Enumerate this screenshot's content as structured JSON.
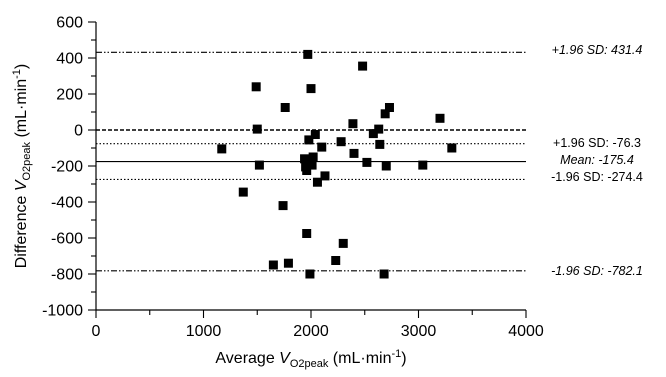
{
  "chart_data": {
    "type": "scatter",
    "title": "",
    "xlabel": {
      "prefix": "Average ",
      "var": "V",
      "sub": "O2peak",
      "unit_open": " (mL·min",
      "sup": "-1",
      "unit_close": ")"
    },
    "ylabel": {
      "prefix": "Difference ",
      "var": "V",
      "sub": "O2peak",
      "unit_open": " (mL·min",
      "sup": "-1",
      "unit_close": ")"
    },
    "xlim": [
      0,
      4000
    ],
    "ylim": [
      -1000,
      600
    ],
    "x_ticks": [
      0,
      1000,
      2000,
      3000,
      4000
    ],
    "y_ticks": [
      -1000,
      -800,
      -600,
      -400,
      -200,
      0,
      200,
      400,
      600
    ],
    "x_minor_step": 500,
    "y_minor_step": 100,
    "grid": false,
    "legend": "none",
    "marker_color": "#000000",
    "points": [
      {
        "x": 1170,
        "y": -105
      },
      {
        "x": 1370,
        "y": -345
      },
      {
        "x": 1490,
        "y": 240
      },
      {
        "x": 1500,
        "y": 5
      },
      {
        "x": 1520,
        "y": -195
      },
      {
        "x": 1650,
        "y": -750
      },
      {
        "x": 1740,
        "y": -420
      },
      {
        "x": 1760,
        "y": 125
      },
      {
        "x": 1790,
        "y": -740
      },
      {
        "x": 1940,
        "y": -160
      },
      {
        "x": 1950,
        "y": -205
      },
      {
        "x": 1960,
        "y": -225
      },
      {
        "x": 1960,
        "y": -575
      },
      {
        "x": 1970,
        "y": 420
      },
      {
        "x": 1980,
        "y": -55
      },
      {
        "x": 1990,
        "y": -800
      },
      {
        "x": 2000,
        "y": 230
      },
      {
        "x": 2010,
        "y": -195
      },
      {
        "x": 2020,
        "y": -150
      },
      {
        "x": 2040,
        "y": -25
      },
      {
        "x": 2060,
        "y": -290
      },
      {
        "x": 2100,
        "y": -95
      },
      {
        "x": 2130,
        "y": -255
      },
      {
        "x": 2230,
        "y": -725
      },
      {
        "x": 2280,
        "y": -65
      },
      {
        "x": 2300,
        "y": -630
      },
      {
        "x": 2390,
        "y": 35
      },
      {
        "x": 2400,
        "y": -130
      },
      {
        "x": 2480,
        "y": 355
      },
      {
        "x": 2520,
        "y": -180
      },
      {
        "x": 2580,
        "y": -20
      },
      {
        "x": 2630,
        "y": 5
      },
      {
        "x": 2640,
        "y": -80
      },
      {
        "x": 2680,
        "y": -800
      },
      {
        "x": 2690,
        "y": 90
      },
      {
        "x": 2700,
        "y": -200
      },
      {
        "x": 2730,
        "y": 125
      },
      {
        "x": 3040,
        "y": -195
      },
      {
        "x": 3200,
        "y": 65
      },
      {
        "x": 3310,
        "y": -100
      }
    ],
    "reference_lines": [
      {
        "y": 431.4,
        "style": "dashdotdot",
        "label": "+1.96 SD: 431.4",
        "italic": true
      },
      {
        "y": 0,
        "style": "dashed",
        "label": "",
        "italic": false
      },
      {
        "y": -76.3,
        "style": "dotted",
        "label": "+1.96 SD: -76.3",
        "italic": false
      },
      {
        "y": -175.4,
        "style": "solid",
        "label": "Mean: -175.4",
        "italic": true
      },
      {
        "y": -274.4,
        "style": "dotted",
        "label": "-1.96 SD: -274.4",
        "italic": false
      },
      {
        "y": -782.1,
        "style": "dashdotdot",
        "label": "-1.96 SD: -782.1",
        "italic": true
      }
    ]
  }
}
